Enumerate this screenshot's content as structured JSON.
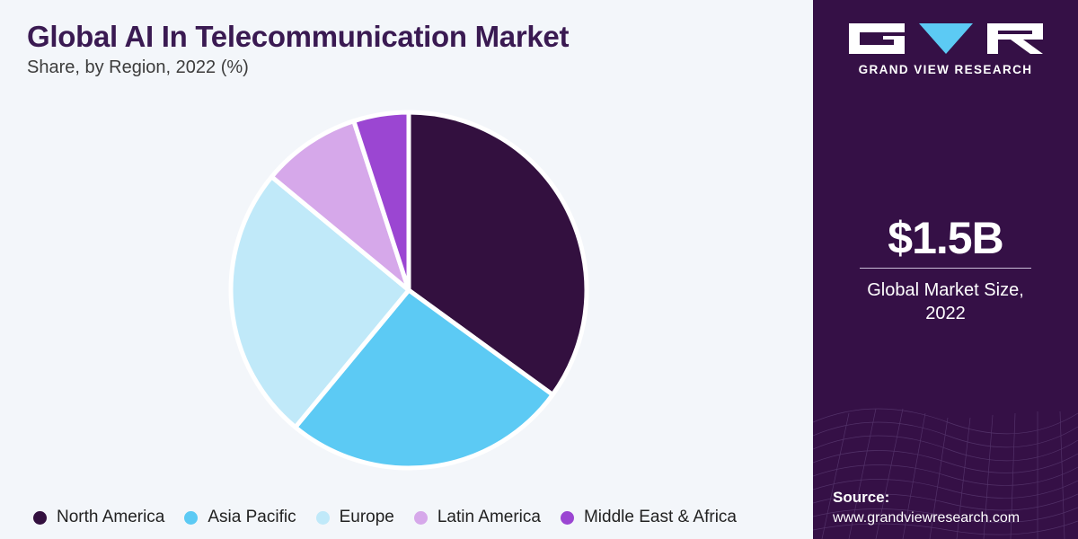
{
  "header": {
    "title": "Global AI In Telecommunication Market",
    "subtitle": "Share, by Region, 2022 (%)"
  },
  "chart_data": {
    "type": "pie",
    "title": "Global AI In Telecommunication Market",
    "subtitle": "Share, by Region, 2022 (%)",
    "categories": [
      "North America",
      "Asia Pacific",
      "Europe",
      "Latin America",
      "Middle East & Africa"
    ],
    "values": [
      35,
      26,
      25,
      9,
      5
    ],
    "colors": [
      "#33103f",
      "#5ccaf4",
      "#c0e9f9",
      "#d6a8ea",
      "#9b46d2"
    ],
    "legend_position": "bottom",
    "start": "top, clockwise"
  },
  "sidebar": {
    "brand": "GRAND VIEW RESEARCH",
    "market_size_value": "$1.5B",
    "market_size_label_line1": "Global Market Size,",
    "market_size_label_line2": "2022",
    "source_title": "Source:",
    "source_url": "www.grandviewresearch.com",
    "background_color": "#351046"
  }
}
